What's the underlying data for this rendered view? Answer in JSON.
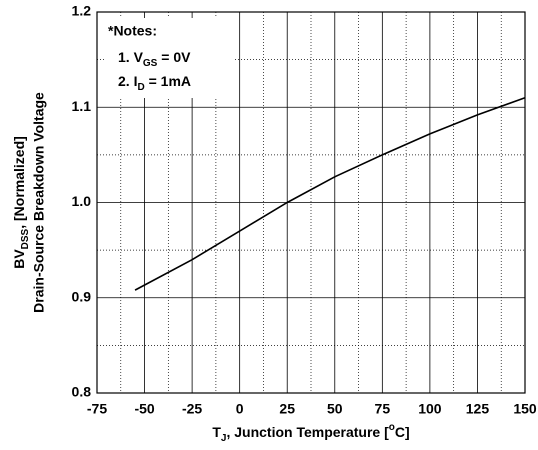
{
  "chart_data": {
    "type": "line",
    "notes": {
      "heading": "*Notes:",
      "items": [
        {
          "text": "1. V",
          "sub": "GS",
          "rest": " = 0V"
        },
        {
          "text": "2. I",
          "sub": "D",
          "rest": " = 1mA"
        }
      ]
    },
    "y_label": {
      "line1": {
        "text": "BV",
        "sub": "DSS",
        "rest": ", [Normalized]"
      },
      "line2": "Drain-Source Breakdown Voltage"
    },
    "x_label": {
      "text": "T",
      "sub": "J",
      "rest": ", Junction Temperature [",
      "sup": "o",
      "end": "C]"
    },
    "series": [
      {
        "color": "#000000",
        "x": [
          -55,
          -25,
          0,
          25,
          50,
          75,
          100,
          125,
          150
        ],
        "values": [
          0.908,
          0.94,
          0.97,
          1.0,
          1.027,
          1.05,
          1.072,
          1.092,
          1.11
        ]
      }
    ],
    "xlim": [
      -75,
      150
    ],
    "xticks": [
      -75,
      -50,
      -25,
      0,
      25,
      50,
      75,
      100,
      125,
      150
    ],
    "ylim": [
      0.8,
      1.2
    ],
    "yticks": [
      0.8,
      0.9,
      {
        "value": 1.0,
        "label": "1.0"
      },
      1.1,
      1.2
    ],
    "grid": true
  }
}
